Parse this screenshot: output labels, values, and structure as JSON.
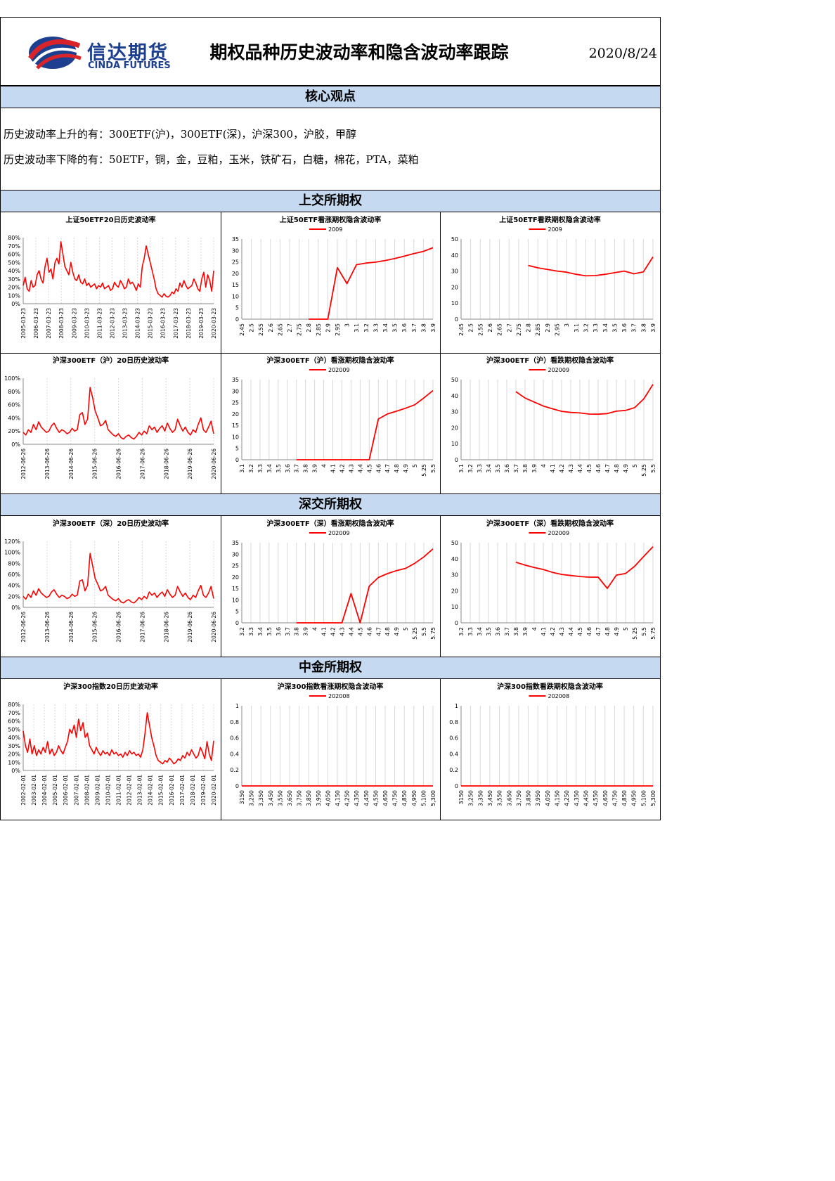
{
  "header": {
    "logo_cn": "信达期货",
    "logo_en": "CINDA FUTURES",
    "title": "期权品种历史波动率和隐含波动率跟踪",
    "date": "2020/8/24"
  },
  "sections": {
    "core": "核心观点",
    "sse": "上交所期权",
    "szse": "深交所期权",
    "cffex": "中金所期权"
  },
  "viewpoints": {
    "rise": "历史波动率上升的有：300ETF(沪)，300ETF(深)，沪深300，沪胶，甲醇",
    "fall": "历史波动率下降的有：50ETF，铜，金，豆粕，玉米，铁矿石，白糖，棉花，PTA，菜粕"
  },
  "colors": {
    "series": "#ff0000",
    "band": "#c5d9f1",
    "logo": "#1c3f8f",
    "grid": "#d9d9d9"
  },
  "chart_data": [
    {
      "id": "sse-50etf-hv",
      "type": "line",
      "title": "上证50ETF20日历史波动率",
      "ylim": [
        0,
        80
      ],
      "yticks": [
        "0%",
        "10%",
        "20%",
        "30%",
        "40%",
        "50%",
        "60%",
        "70%",
        "80%"
      ],
      "x_labels": [
        "2005-03-23",
        "2006-03-23",
        "2007-03-23",
        "2008-03-23",
        "2009-03-23",
        "2010-03-23",
        "2011-03-23",
        "2012-03-23",
        "2013-03-23",
        "2014-03-23",
        "2015-03-23",
        "2016-03-23",
        "2017-03-23",
        "2018-03-23",
        "2019-03-23",
        "2020-03-23"
      ],
      "series": [
        {
          "values": [
            22,
            32,
            18,
            15,
            28,
            20,
            22,
            35,
            40,
            30,
            25,
            45,
            55,
            38,
            42,
            30,
            50,
            55,
            48,
            75,
            60,
            45,
            40,
            35,
            50,
            38,
            30,
            28,
            35,
            26,
            24,
            30,
            22,
            25,
            20,
            22,
            24,
            18,
            22,
            20,
            25,
            18,
            20,
            22,
            16,
            18,
            26,
            22,
            20,
            28,
            24,
            18,
            20,
            30,
            24,
            26,
            22,
            16,
            24,
            20,
            45,
            55,
            70,
            60,
            50,
            40,
            30,
            18,
            12,
            10,
            8,
            12,
            9,
            8,
            10,
            14,
            12,
            18,
            15,
            25,
            20,
            28,
            22,
            18,
            20,
            22,
            30,
            25,
            18,
            15,
            30,
            38,
            20,
            35,
            28,
            15,
            40
          ]
        }
      ]
    },
    {
      "id": "sse-50etf-call-iv",
      "type": "line",
      "title": "上证50ETF看涨期权隐含波动率",
      "ylim": [
        0,
        35
      ],
      "yticks": [
        "0",
        "5",
        "10",
        "15",
        "20",
        "25",
        "30",
        "35"
      ],
      "categories": [
        "2.45",
        "2.5",
        "2.55",
        "2.6",
        "2.65",
        "2.7",
        "2.75",
        "2.8",
        "2.85",
        "2.9",
        "2.95",
        "3",
        "3.1",
        "3.2",
        "3.3",
        "3.4",
        "3.5",
        "3.6",
        "3.7",
        "3.8",
        "3.9"
      ],
      "series": [
        {
          "name": "2009",
          "values": [
            null,
            null,
            null,
            null,
            null,
            null,
            null,
            0,
            0,
            0,
            22.5,
            15.5,
            23.8,
            24.5,
            24.9,
            25.6,
            26.5,
            27.5,
            28.6,
            29.6,
            31.2
          ]
        }
      ]
    },
    {
      "id": "sse-50etf-put-iv",
      "type": "line",
      "title": "上证50ETF看跌期权隐含波动率",
      "ylim": [
        0,
        50
      ],
      "yticks": [
        "0",
        "10",
        "20",
        "30",
        "40",
        "50"
      ],
      "categories": [
        "2.45",
        "2.5",
        "2.55",
        "2.6",
        "2.65",
        "2.7",
        "2.75",
        "2.8",
        "2.85",
        "2.9",
        "2.95",
        "3",
        "3.1",
        "3.2",
        "3.3",
        "3.4",
        "3.5",
        "3.6",
        "3.7",
        "3.8",
        "3.9"
      ],
      "series": [
        {
          "name": "2009",
          "values": [
            null,
            null,
            null,
            null,
            null,
            null,
            null,
            33.5,
            32.0,
            31.0,
            30.0,
            29.3,
            28.0,
            27.0,
            27.2,
            28.0,
            29.0,
            30.0,
            28.3,
            29.5,
            38.8
          ]
        }
      ]
    },
    {
      "id": "sse-300etf-hv",
      "type": "line",
      "title": "沪深300ETF（沪）20日历史波动率",
      "ylim": [
        0,
        100
      ],
      "yticks": [
        "0%",
        "20%",
        "40%",
        "60%",
        "80%",
        "100%"
      ],
      "x_labels": [
        "2012-06-26",
        "2013-06-26",
        "2014-06-26",
        "2015-06-26",
        "2016-06-26",
        "2017-06-26",
        "2018-06-26",
        "2019-06-26",
        "2020-06-26"
      ],
      "series": [
        {
          "values": [
            18,
            14,
            22,
            18,
            30,
            22,
            34,
            26,
            22,
            18,
            20,
            28,
            32,
            24,
            18,
            22,
            20,
            16,
            18,
            24,
            20,
            22,
            45,
            48,
            30,
            38,
            86,
            70,
            50,
            40,
            28,
            30,
            36,
            22,
            18,
            14,
            12,
            16,
            10,
            8,
            12,
            14,
            10,
            8,
            12,
            18,
            14,
            20,
            16,
            28,
            22,
            26,
            18,
            24,
            28,
            20,
            32,
            24,
            18,
            22,
            38,
            28,
            20,
            26,
            18,
            14,
            22,
            18,
            30,
            40,
            22,
            18,
            26,
            35,
            16
          ]
        }
      ]
    },
    {
      "id": "sse-300etf-call-iv",
      "type": "line",
      "title": "沪深300ETF（沪）看涨期权隐含波动率",
      "ylim": [
        0,
        35
      ],
      "yticks": [
        "0",
        "5",
        "10",
        "15",
        "20",
        "25",
        "30",
        "35"
      ],
      "categories": [
        "3.1",
        "3.2",
        "3.3",
        "3.4",
        "3.5",
        "3.6",
        "3.7",
        "3.8",
        "3.9",
        "4",
        "4.1",
        "4.2",
        "4.3",
        "4.4",
        "4.5",
        "4.6",
        "4.7",
        "4.8",
        "4.9",
        "5",
        "5.25",
        "5.5"
      ],
      "series": [
        {
          "name": "202009",
          "values": [
            null,
            null,
            null,
            null,
            null,
            null,
            0,
            0,
            0,
            0,
            0,
            0,
            0,
            0,
            0,
            17.8,
            20.0,
            21.2,
            22.5,
            24.0,
            27.0,
            30.2
          ]
        }
      ]
    },
    {
      "id": "sse-300etf-put-iv",
      "type": "line",
      "title": "沪深300ETF（沪）看跌期权隐含波动率",
      "ylim": [
        0,
        50
      ],
      "yticks": [
        "0",
        "10",
        "20",
        "30",
        "40",
        "50"
      ],
      "categories": [
        "3.1",
        "3.2",
        "3.3",
        "3.4",
        "3.5",
        "3.6",
        "3.7",
        "3.8",
        "3.9",
        "4",
        "4.1",
        "4.2",
        "4.3",
        "4.4",
        "4.5",
        "4.6",
        "4.7",
        "4.8",
        "4.9",
        "5",
        "5.25",
        "5.5"
      ],
      "series": [
        {
          "name": "202009",
          "values": [
            null,
            null,
            null,
            null,
            null,
            null,
            42.5,
            38.5,
            36.0,
            33.5,
            31.8,
            30.2,
            29.5,
            29.2,
            28.5,
            28.4,
            28.8,
            30.3,
            30.8,
            32.5,
            38.0,
            47.0
          ]
        }
      ]
    },
    {
      "id": "szse-300etf-hv",
      "type": "line",
      "title": "沪深300ETF（深）20日历史波动率",
      "ylim": [
        0,
        120
      ],
      "yticks": [
        "0%",
        "20%",
        "40%",
        "60%",
        "80%",
        "100%",
        "120%"
      ],
      "x_labels": [
        "2012-06-26",
        "2013-06-26",
        "2014-06-26",
        "2015-06-26",
        "2016-06-26",
        "2017-06-26",
        "2018-06-26",
        "2019-06-26",
        "2020-06-26"
      ],
      "series": [
        {
          "values": [
            20,
            15,
            24,
            18,
            30,
            22,
            34,
            26,
            22,
            18,
            20,
            28,
            32,
            24,
            18,
            22,
            20,
            16,
            18,
            24,
            20,
            22,
            48,
            50,
            30,
            40,
            98,
            75,
            52,
            42,
            30,
            32,
            38,
            22,
            18,
            14,
            12,
            16,
            10,
            8,
            12,
            14,
            10,
            8,
            12,
            18,
            14,
            20,
            16,
            28,
            22,
            26,
            18,
            24,
            28,
            20,
            32,
            24,
            18,
            22,
            38,
            28,
            20,
            26,
            18,
            14,
            22,
            18,
            30,
            40,
            22,
            18,
            26,
            38,
            16
          ]
        }
      ]
    },
    {
      "id": "szse-300etf-call-iv",
      "type": "line",
      "title": "沪深300ETF（深）看涨期权隐含波动率",
      "ylim": [
        0,
        35
      ],
      "yticks": [
        "0",
        "5",
        "10",
        "15",
        "20",
        "25",
        "30",
        "35"
      ],
      "categories": [
        "3.2",
        "3.3",
        "3.4",
        "3.5",
        "3.6",
        "3.7",
        "3.8",
        "3.9",
        "4",
        "4.1",
        "4.2",
        "4.3",
        "4.4",
        "4.5",
        "4.6",
        "4.7",
        "4.8",
        "4.9",
        "5",
        "5.25",
        "5.5",
        "5.75"
      ],
      "series": [
        {
          "name": "202009",
          "values": [
            null,
            null,
            null,
            null,
            null,
            null,
            0,
            0,
            0,
            0,
            0,
            0,
            12.8,
            0,
            16.0,
            19.8,
            21.5,
            22.8,
            23.8,
            26.0,
            28.8,
            32.3
          ]
        }
      ]
    },
    {
      "id": "szse-300etf-put-iv",
      "type": "line",
      "title": "沪深300ETF（深）看跌期权隐含波动率",
      "ylim": [
        0,
        50
      ],
      "yticks": [
        "0",
        "10",
        "20",
        "30",
        "40",
        "50"
      ],
      "categories": [
        "3.2",
        "3.3",
        "3.4",
        "3.5",
        "3.6",
        "3.7",
        "3.8",
        "3.9",
        "4",
        "4.1",
        "4.2",
        "4.3",
        "4.4",
        "4.5",
        "4.6",
        "4.7",
        "4.8",
        "4.9",
        "5",
        "5.25",
        "5.5",
        "5.75"
      ],
      "series": [
        {
          "name": "202009",
          "values": [
            null,
            null,
            null,
            null,
            null,
            null,
            37.8,
            36.0,
            34.5,
            33.3,
            31.5,
            30.2,
            29.5,
            28.9,
            28.5,
            28.5,
            21.5,
            29.8,
            30.8,
            35.3,
            41.5,
            47.5
          ]
        }
      ]
    },
    {
      "id": "cffex-hs300-hv",
      "type": "line",
      "title": "沪深300指数20日历史波动率",
      "ylim": [
        0,
        80
      ],
      "yticks": [
        "0%",
        "10%",
        "20%",
        "30%",
        "40%",
        "50%",
        "60%",
        "70%",
        "80%"
      ],
      "x_labels": [
        "2002-02-01",
        "2003-02-01",
        "2004-02-01",
        "2005-02-01",
        "2006-02-01",
        "2007-02-01",
        "2008-02-01",
        "2009-02-01",
        "2010-02-01",
        "2011-02-01",
        "2012-02-01",
        "2013-02-01",
        "2014-02-01",
        "2015-02-01",
        "2016-02-01",
        "2017-02-01",
        "2018-02-01",
        "2019-02-01",
        "2020-02-01"
      ],
      "series": [
        {
          "values": [
            48,
            30,
            22,
            38,
            20,
            30,
            18,
            25,
            20,
            28,
            22,
            35,
            20,
            26,
            18,
            22,
            30,
            24,
            20,
            28,
            35,
            50,
            45,
            55,
            40,
            62,
            48,
            58,
            40,
            45,
            30,
            25,
            20,
            28,
            22,
            18,
            24,
            20,
            22,
            18,
            25,
            20,
            22,
            18,
            20,
            16,
            22,
            18,
            24,
            20,
            22,
            18,
            20,
            16,
            25,
            45,
            70,
            55,
            40,
            30,
            18,
            12,
            10,
            8,
            12,
            10,
            15,
            12,
            8,
            10,
            14,
            12,
            18,
            15,
            22,
            18,
            25,
            20,
            15,
            18,
            28,
            22,
            14,
            35,
            20,
            12,
            36
          ]
        }
      ]
    },
    {
      "id": "cffex-hs300-call-iv",
      "type": "line",
      "title": "沪深300指数看涨期权隐含波动率",
      "ylim": [
        0,
        1
      ],
      "yticks": [
        "0",
        "0.2",
        "0.4",
        "0.6",
        "0.8",
        "1"
      ],
      "categories": [
        "3150",
        "3,250",
        "3,350",
        "3,450",
        "3,550",
        "3,650",
        "3,750",
        "3,850",
        "3,950",
        "4,050",
        "4,150",
        "4,250",
        "4,350",
        "4,450",
        "4,550",
        "4,650",
        "4,750",
        "4,850",
        "4,950",
        "5,100",
        "5,300"
      ],
      "series": [
        {
          "name": "202008",
          "values": [
            0,
            0,
            0,
            0,
            0,
            0,
            0,
            0,
            0,
            0,
            0,
            0,
            0,
            0,
            0,
            0,
            0,
            0,
            0,
            0,
            0
          ]
        }
      ]
    },
    {
      "id": "cffex-hs300-put-iv",
      "type": "line",
      "title": "沪深300指数看跌期权隐含波动率",
      "ylim": [
        0,
        1
      ],
      "yticks": [
        "0",
        "0.2",
        "0.4",
        "0.6",
        "0.8",
        "1"
      ],
      "categories": [
        "3150",
        "3,250",
        "3,350",
        "3,450",
        "3,550",
        "3,650",
        "3,750",
        "3,850",
        "3,950",
        "4,050",
        "4,150",
        "4,250",
        "4,350",
        "4,450",
        "4,550",
        "4,650",
        "4,750",
        "4,850",
        "4,950",
        "5,100",
        "5,300"
      ],
      "series": [
        {
          "name": "202008",
          "values": [
            0,
            0,
            0,
            0,
            0,
            0,
            0,
            0,
            0,
            0,
            0,
            0,
            0,
            0,
            0,
            0,
            0,
            0,
            0,
            0,
            0
          ]
        }
      ]
    }
  ]
}
